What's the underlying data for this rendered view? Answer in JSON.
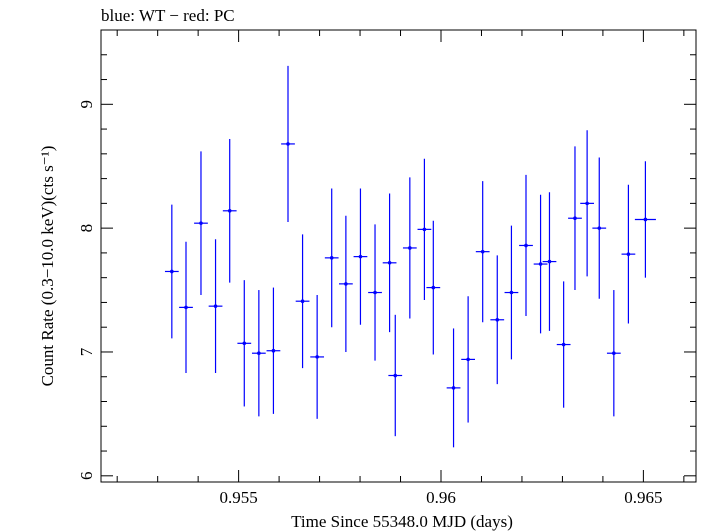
{
  "chart_data": {
    "type": "scatter",
    "title": "blue: WT − red: PC",
    "xlabel": "Time Since 55348.0 MJD (days)",
    "ylabel": "Count Rate (0.3−10.0 keV)(cts s⁻¹)",
    "xlim": [
      0.9516,
      0.9663
    ],
    "ylim": [
      5.95,
      9.6
    ],
    "x_ticks": [
      0.955,
      0.96,
      0.965
    ],
    "x_tick_labels": [
      "0.955",
      "0.96",
      "0.965"
    ],
    "y_ticks": [
      6,
      7,
      8,
      9
    ],
    "y_tick_labels": [
      "6",
      "7",
      "8",
      "9"
    ],
    "grid": false,
    "series": [
      {
        "color": "#0000ff",
        "points": [
          {
            "x": 0.95335,
            "y": 7.65,
            "xerr": 0.00017,
            "yerr": 0.54
          },
          {
            "x": 0.9537,
            "y": 7.36,
            "xerr": 0.00017,
            "yerr": 0.53
          },
          {
            "x": 0.95407,
            "y": 8.04,
            "xerr": 0.00017,
            "yerr": 0.58
          },
          {
            "x": 0.95443,
            "y": 7.37,
            "xerr": 0.00017,
            "yerr": 0.54
          },
          {
            "x": 0.95478,
            "y": 8.14,
            "xerr": 0.00017,
            "yerr": 0.58
          },
          {
            "x": 0.95514,
            "y": 7.07,
            "xerr": 0.00017,
            "yerr": 0.51
          },
          {
            "x": 0.9555,
            "y": 6.99,
            "xerr": 0.00017,
            "yerr": 0.51
          },
          {
            "x": 0.95586,
            "y": 7.01,
            "xerr": 0.00017,
            "yerr": 0.51
          },
          {
            "x": 0.95622,
            "y": 8.68,
            "xerr": 0.00017,
            "yerr": 0.63
          },
          {
            "x": 0.95658,
            "y": 7.41,
            "xerr": 0.00017,
            "yerr": 0.54
          },
          {
            "x": 0.95694,
            "y": 6.96,
            "xerr": 0.00017,
            "yerr": 0.5
          },
          {
            "x": 0.9573,
            "y": 7.76,
            "xerr": 0.00017,
            "yerr": 0.56
          },
          {
            "x": 0.95765,
            "y": 7.55,
            "xerr": 0.00017,
            "yerr": 0.55
          },
          {
            "x": 0.95801,
            "y": 7.77,
            "xerr": 0.00017,
            "yerr": 0.55
          },
          {
            "x": 0.95837,
            "y": 7.48,
            "xerr": 0.00017,
            "yerr": 0.55
          },
          {
            "x": 0.95873,
            "y": 7.72,
            "xerr": 0.00017,
            "yerr": 0.56
          },
          {
            "x": 0.95887,
            "y": 6.81,
            "xerr": 0.00017,
            "yerr": 0.49
          },
          {
            "x": 0.95923,
            "y": 7.84,
            "xerr": 0.00017,
            "yerr": 0.57
          },
          {
            "x": 0.95959,
            "y": 7.99,
            "xerr": 0.00017,
            "yerr": 0.57
          },
          {
            "x": 0.95981,
            "y": 7.52,
            "xerr": 0.00017,
            "yerr": 0.54
          },
          {
            "x": 0.96031,
            "y": 6.71,
            "xerr": 0.00017,
            "yerr": 0.48
          },
          {
            "x": 0.96067,
            "y": 6.94,
            "xerr": 0.00017,
            "yerr": 0.51
          },
          {
            "x": 0.96103,
            "y": 7.81,
            "xerr": 0.00017,
            "yerr": 0.57
          },
          {
            "x": 0.96139,
            "y": 7.26,
            "xerr": 0.00017,
            "yerr": 0.52
          },
          {
            "x": 0.96174,
            "y": 7.48,
            "xerr": 0.00017,
            "yerr": 0.54
          },
          {
            "x": 0.9621,
            "y": 7.86,
            "xerr": 0.00017,
            "yerr": 0.57
          },
          {
            "x": 0.96246,
            "y": 7.71,
            "xerr": 0.00017,
            "yerr": 0.56
          },
          {
            "x": 0.96268,
            "y": 7.73,
            "xerr": 0.00017,
            "yerr": 0.56
          },
          {
            "x": 0.96303,
            "y": 7.06,
            "xerr": 0.00017,
            "yerr": 0.51
          },
          {
            "x": 0.96331,
            "y": 8.08,
            "xerr": 0.00017,
            "yerr": 0.58
          },
          {
            "x": 0.96361,
            "y": 8.2,
            "xerr": 0.00017,
            "yerr": 0.59
          },
          {
            "x": 0.96391,
            "y": 8.0,
            "xerr": 0.00017,
            "yerr": 0.57
          },
          {
            "x": 0.96427,
            "y": 6.99,
            "xerr": 0.00017,
            "yerr": 0.51
          },
          {
            "x": 0.96463,
            "y": 7.79,
            "xerr": 0.00017,
            "yerr": 0.56
          },
          {
            "x": 0.96505,
            "y": 8.07,
            "xerr": 0.00026,
            "yerr": 0.47
          }
        ]
      }
    ]
  }
}
